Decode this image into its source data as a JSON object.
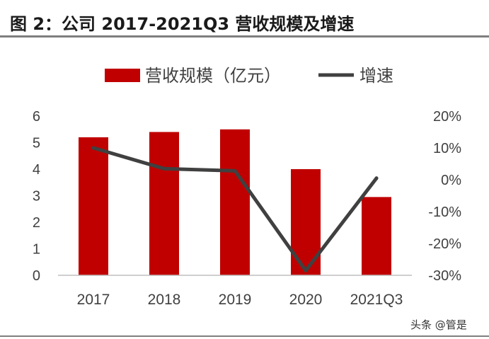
{
  "figure": {
    "title": "图 2：公司 2017-2021Q3 营收规模及增速",
    "watermark": "头条 @管是"
  },
  "colors": {
    "bar": "#c00000",
    "line": "#404040",
    "axis": "#bfbfbf",
    "text": "#404040"
  },
  "chart_data": {
    "type": "bar",
    "categories": [
      "2017",
      "2018",
      "2019",
      "2020",
      "2021Q3"
    ],
    "series": [
      {
        "name": "营收规模（亿元）",
        "type": "bar",
        "axis": "left",
        "values": [
          5.2,
          5.4,
          5.5,
          4.0,
          2.95
        ]
      },
      {
        "name": "增速",
        "type": "line",
        "axis": "right",
        "values": [
          10,
          3.5,
          2.8,
          -28.5,
          0.5
        ]
      }
    ],
    "y_left": {
      "range": [
        0,
        6
      ],
      "ticks": [
        "0",
        "1",
        "2",
        "3",
        "4",
        "5",
        "6"
      ]
    },
    "y_right": {
      "range": [
        -30,
        20
      ],
      "ticks": [
        "-30%",
        "-20%",
        "-10%",
        "0%",
        "10%",
        "20%"
      ]
    },
    "legend_position": "top",
    "grid": false
  }
}
